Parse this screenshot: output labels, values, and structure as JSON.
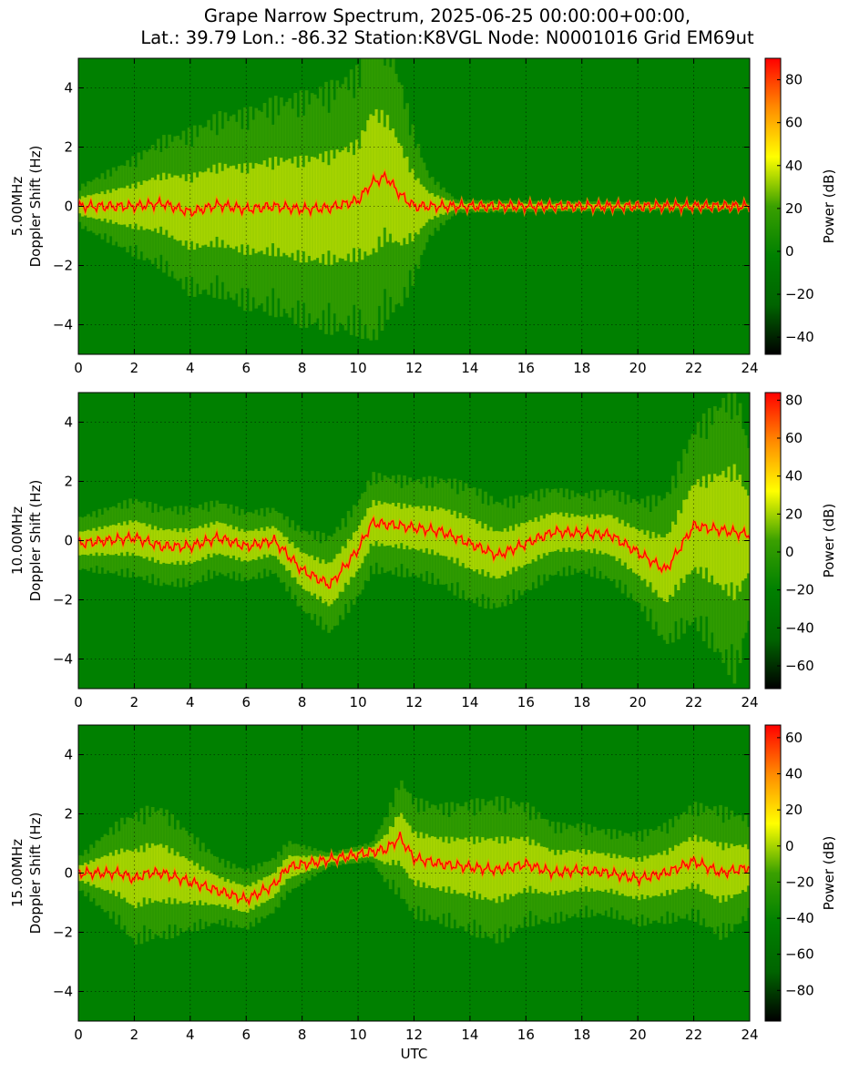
{
  "title_line1": "Grape Narrow Spectrum, 2025-06-25 00:00:00+00:00,",
  "title_line2": "Lat.: 39.79 Lon.: -86.32 Station:K8VGL Node: N0001016 Grid EM69ut",
  "colors": {
    "colormap": [
      "#000000",
      "#006400",
      "#008000",
      "#3aa000",
      "#ffff00",
      "#ff8c00",
      "#ff0000"
    ],
    "axis": "#000000",
    "grid": "#000000"
  },
  "chart_data": [
    {
      "type": "heatmap",
      "band": "5.00MHz",
      "ylabel": "Doppler Shift (Hz)",
      "xlabel": "",
      "xlim": [
        0,
        24
      ],
      "ylim": [
        -5,
        5
      ],
      "xticks": [
        0,
        2,
        4,
        6,
        8,
        10,
        12,
        14,
        16,
        18,
        20,
        22,
        24
      ],
      "yticks": [
        -4,
        -2,
        0,
        2,
        4
      ],
      "colorbar": {
        "label": "Power (dB)",
        "range": [
          -48,
          90
        ],
        "ticks": [
          -40,
          -20,
          0,
          20,
          40,
          60,
          80
        ]
      },
      "grid": true,
      "features": {
        "signal_trace": [
          [
            0,
            0
          ],
          [
            2,
            0
          ],
          [
            3,
            0.1
          ],
          [
            4,
            -0.2
          ],
          [
            5,
            0.05
          ],
          [
            6,
            -0.1
          ],
          [
            7,
            0
          ],
          [
            8,
            -0.1
          ],
          [
            9,
            -0.05
          ],
          [
            10,
            0.2
          ],
          [
            10.5,
            0.8
          ],
          [
            11,
            1.0
          ],
          [
            11.5,
            0.4
          ],
          [
            12,
            0
          ],
          [
            24,
            0
          ]
        ],
        "spread_envelope": [
          [
            0,
            0.6
          ],
          [
            2,
            1.5
          ],
          [
            4,
            2.5
          ],
          [
            6,
            3.0
          ],
          [
            8,
            3.5
          ],
          [
            10,
            4.0
          ],
          [
            10.5,
            5.0
          ],
          [
            11.5,
            3.5
          ],
          [
            12.5,
            1.0
          ],
          [
            13.5,
            0.2
          ],
          [
            24,
            0.1
          ]
        ]
      }
    },
    {
      "type": "heatmap",
      "band": "10.00MHz",
      "ylabel": "Doppler Shift (Hz)",
      "xlabel": "",
      "xlim": [
        0,
        24
      ],
      "ylim": [
        -5,
        5
      ],
      "xticks": [
        0,
        2,
        4,
        6,
        8,
        10,
        12,
        14,
        16,
        18,
        20,
        22,
        24
      ],
      "yticks": [
        -4,
        -2,
        0,
        2,
        4
      ],
      "colorbar": {
        "label": "Power (dB)",
        "range": [
          -72,
          84
        ],
        "ticks": [
          -60,
          -40,
          -20,
          0,
          20,
          40,
          60,
          80
        ]
      },
      "grid": true,
      "features": {
        "signal_trace": [
          [
            0,
            -0.1
          ],
          [
            2,
            0.1
          ],
          [
            3,
            -0.2
          ],
          [
            4,
            -0.2
          ],
          [
            5,
            0.1
          ],
          [
            6,
            -0.2
          ],
          [
            7,
            0
          ],
          [
            8,
            -1.0
          ],
          [
            9,
            -1.5
          ],
          [
            10,
            -0.3
          ],
          [
            10.5,
            0.6
          ],
          [
            11.5,
            0.5
          ],
          [
            13,
            0.3
          ],
          [
            15,
            -0.5
          ],
          [
            17,
            0.3
          ],
          [
            19,
            0.2
          ],
          [
            21,
            -1.0
          ],
          [
            22,
            0.5
          ],
          [
            24,
            0.2
          ]
        ],
        "spread_envelope": [
          [
            0,
            0.8
          ],
          [
            2,
            1.2
          ],
          [
            4,
            1.2
          ],
          [
            7,
            1.0
          ],
          [
            9,
            1.5
          ],
          [
            10.5,
            1.5
          ],
          [
            12,
            1.5
          ],
          [
            14,
            1.8
          ],
          [
            16,
            1.5
          ],
          [
            18,
            1.2
          ],
          [
            20,
            1.6
          ],
          [
            22,
            3.0
          ],
          [
            23.5,
            4.5
          ],
          [
            24,
            2.5
          ]
        ]
      }
    },
    {
      "type": "heatmap",
      "band": "15.00MHz",
      "ylabel": "Doppler Shift (Hz)",
      "xlabel": "UTC",
      "xlim": [
        0,
        24
      ],
      "ylim": [
        -5,
        5
      ],
      "xticks": [
        0,
        2,
        4,
        6,
        8,
        10,
        12,
        14,
        16,
        18,
        20,
        22,
        24
      ],
      "yticks": [
        -4,
        -2,
        0,
        2,
        4
      ],
      "colorbar": {
        "label": "Power (dB)",
        "range": [
          -97,
          67
        ],
        "ticks": [
          -80,
          -60,
          -40,
          -20,
          0,
          20,
          40,
          60
        ]
      },
      "grid": true,
      "features": {
        "signal_trace": [
          [
            0,
            0
          ],
          [
            1.5,
            0
          ],
          [
            2,
            -0.2
          ],
          [
            2.5,
            0
          ],
          [
            3,
            0
          ],
          [
            4,
            -0.3
          ],
          [
            5,
            -0.6
          ],
          [
            6,
            -0.9
          ],
          [
            7,
            -0.4
          ],
          [
            7.5,
            0.2
          ],
          [
            11,
            0.8
          ],
          [
            11.5,
            1.2
          ],
          [
            12,
            0.5
          ],
          [
            13,
            0.3
          ],
          [
            14,
            0.2
          ],
          [
            15,
            0.1
          ],
          [
            16,
            0.3
          ],
          [
            17,
            0
          ],
          [
            18,
            0.1
          ],
          [
            19,
            0
          ],
          [
            20,
            -0.2
          ],
          [
            21,
            0
          ],
          [
            22,
            0.4
          ],
          [
            23,
            0
          ],
          [
            24,
            0.2
          ]
        ],
        "spread_envelope": [
          [
            0,
            0.5
          ],
          [
            2,
            2.0
          ],
          [
            3,
            2.0
          ],
          [
            5,
            1.0
          ],
          [
            7.5,
            0.8
          ],
          [
            9,
            0.2
          ],
          [
            10.5,
            0.3
          ],
          [
            11.5,
            1.8
          ],
          [
            13,
            1.8
          ],
          [
            15,
            2.2
          ],
          [
            17,
            1.5
          ],
          [
            19,
            1.3
          ],
          [
            21,
            1.5
          ],
          [
            23,
            2.0
          ],
          [
            24,
            1.5
          ]
        ]
      }
    }
  ]
}
